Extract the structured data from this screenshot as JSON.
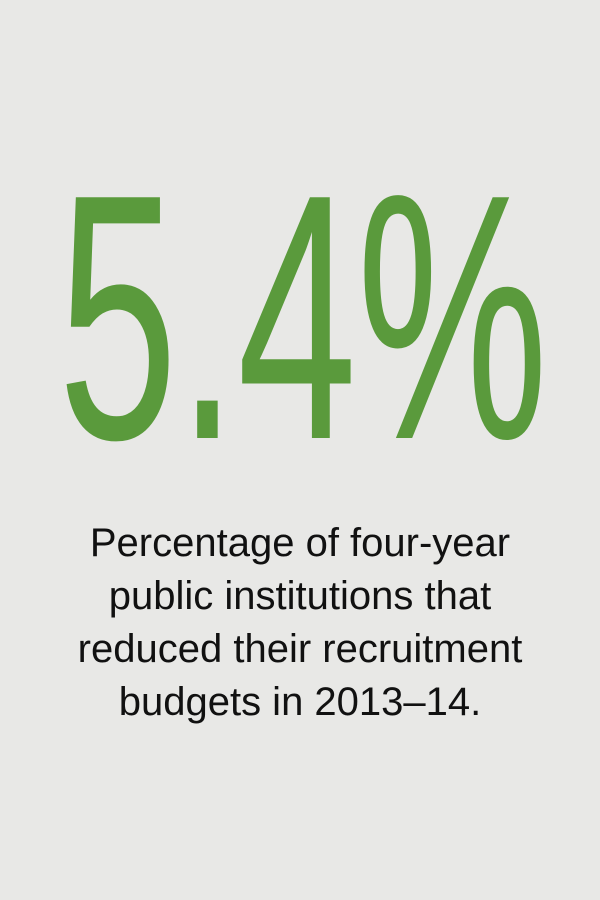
{
  "stat": "5.4%",
  "caption": [
    "Percentage of four-year",
    "public institutions that",
    "reduced their recruitment",
    "budgets in 2013–14."
  ]
}
